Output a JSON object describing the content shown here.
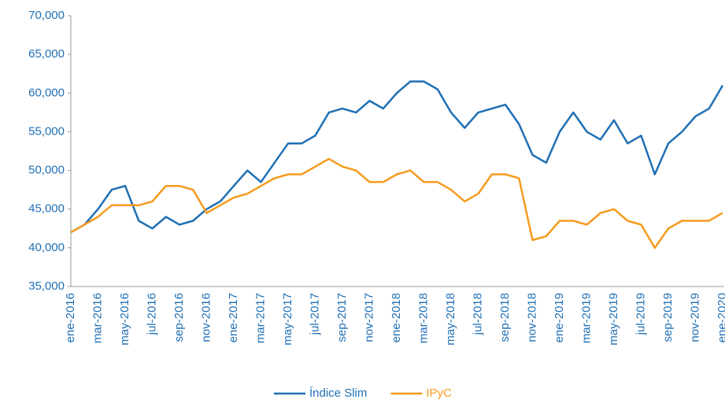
{
  "chart_data": {
    "type": "line",
    "categories": [
      "ene-2016",
      null,
      "mar-2016",
      null,
      "may-2016",
      null,
      "jul-2016",
      null,
      "sep-2016",
      null,
      "nov-2016",
      null,
      "ene-2017",
      null,
      "mar-2017",
      null,
      "may-2017",
      null,
      "jul-2017",
      null,
      "sep-2017",
      null,
      "nov-2017",
      null,
      "ene-2018",
      null,
      "mar-2018",
      null,
      "may-2018",
      null,
      "jul-2018",
      null,
      "sep-2018",
      null,
      "nov-2018",
      null,
      "ene-2019",
      null,
      "mar-2019",
      null,
      "may-2019",
      null,
      "jul-2019",
      null,
      "sep-2019",
      null,
      "nov-2019",
      null,
      "ene-2020"
    ],
    "series": [
      {
        "name": "Índice Slim",
        "color": "#1f6fb4",
        "values": [
          42000,
          43000,
          45000,
          47500,
          48000,
          43500,
          42500,
          44000,
          43000,
          43500,
          45000,
          46000,
          48000,
          50000,
          48500,
          51000,
          53500,
          53500,
          54500,
          57500,
          58000,
          57500,
          59000,
          58000,
          60000,
          61500,
          61500,
          60500,
          57500,
          55500,
          57500,
          58000,
          58500,
          56000,
          52000,
          51000,
          55000,
          57500,
          55000,
          54000,
          56500,
          53500,
          54500,
          49500,
          53500,
          55000,
          57000,
          58000,
          61000
        ]
      },
      {
        "name": "IPyC",
        "color": "#f59b1e",
        "values": [
          42000,
          43000,
          44000,
          45500,
          45500,
          45500,
          46000,
          48000,
          48000,
          47500,
          44500,
          45500,
          46500,
          47000,
          48000,
          49000,
          49500,
          49500,
          50500,
          51500,
          50500,
          50000,
          48500,
          48500,
          49500,
          50000,
          48500,
          48500,
          47500,
          46000,
          47000,
          49500,
          49500,
          49000,
          41000,
          41500,
          43500,
          43500,
          43000,
          44500,
          45000,
          43500,
          43000,
          40000,
          42500,
          43500,
          43500,
          43500,
          44500
        ]
      }
    ],
    "ylim": [
      35000,
      70000
    ],
    "yticks": [
      {
        "value": 35000,
        "label": "35,000"
      },
      {
        "value": 40000,
        "label": "40,000"
      },
      {
        "value": 45000,
        "label": "45,000"
      },
      {
        "value": 50000,
        "label": "50,000"
      },
      {
        "value": 55000,
        "label": "55,000"
      },
      {
        "value": 60000,
        "label": "60,000"
      },
      {
        "value": 65000,
        "label": "65,000"
      },
      {
        "value": 70000,
        "label": "70,000"
      }
    ],
    "grid": false,
    "legend": "bottom"
  }
}
